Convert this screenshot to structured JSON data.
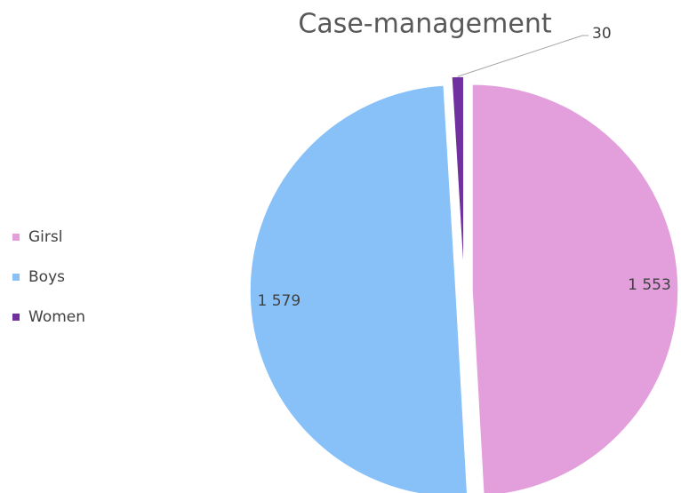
{
  "chart_data": {
    "type": "pie",
    "title": "Case-management",
    "categories": [
      "Girsl",
      "Boys",
      "Women"
    ],
    "values": [
      1553,
      1579,
      30
    ],
    "value_labels": [
      "1 553",
      "1 579",
      "30"
    ],
    "colors": [
      "#e39fdc",
      "#87c1f8",
      "#7030a0"
    ],
    "legend": "left"
  }
}
